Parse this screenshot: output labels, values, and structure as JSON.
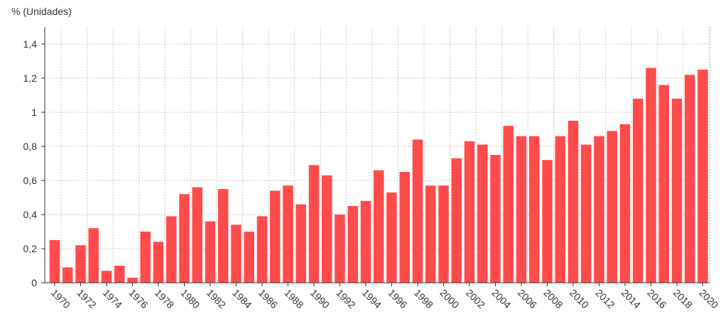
{
  "chart_data": {
    "type": "bar",
    "ylabel": "% (Unidades)",
    "categories": [
      1970,
      1971,
      1972,
      1973,
      1974,
      1975,
      1976,
      1977,
      1978,
      1979,
      1980,
      1981,
      1982,
      1983,
      1984,
      1985,
      1986,
      1987,
      1988,
      1989,
      1990,
      1991,
      1992,
      1993,
      1994,
      1995,
      1996,
      1997,
      1998,
      1999,
      2000,
      2001,
      2002,
      2003,
      2004,
      2005,
      2006,
      2007,
      2008,
      2009,
      2010,
      2011,
      2012,
      2013,
      2014,
      2015,
      2016,
      2017,
      2018,
      2019,
      2020
    ],
    "values": [
      0.25,
      0.09,
      0.22,
      0.32,
      0.07,
      0.1,
      0.03,
      0.3,
      0.24,
      0.39,
      0.52,
      0.56,
      0.36,
      0.55,
      0.34,
      0.3,
      0.39,
      0.54,
      0.57,
      0.46,
      0.69,
      0.63,
      0.4,
      0.45,
      0.48,
      0.66,
      0.53,
      0.65,
      0.84,
      0.57,
      0.57,
      0.73,
      0.83,
      0.81,
      0.75,
      0.92,
      0.86,
      0.86,
      0.72,
      0.86,
      0.95,
      0.81,
      0.86,
      0.89,
      0.93,
      1.08,
      1.26,
      1.16,
      1.08,
      1.22,
      1.25
    ],
    "ytick_labels": [
      "0",
      "0,2",
      "0,4",
      "0,6",
      "0,8",
      "1",
      "1,2",
      "1,4"
    ],
    "ytick_values": [
      0,
      0.2,
      0.4,
      0.6,
      0.8,
      1.0,
      1.2,
      1.4
    ],
    "xtick_labels": [
      "1970",
      "1972",
      "1974",
      "1976",
      "1978",
      "1980",
      "1982",
      "1984",
      "1986",
      "1988",
      "1990",
      "1992",
      "1994",
      "1996",
      "1998",
      "2000",
      "2002",
      "2004",
      "2006",
      "2008",
      "2010",
      "2012",
      "2014",
      "2016",
      "2018",
      "2020"
    ],
    "ylim": [
      0,
      1.45
    ],
    "grid": true,
    "bar_color": "#ff4b4b",
    "grid_color": "#c8c8c8"
  }
}
